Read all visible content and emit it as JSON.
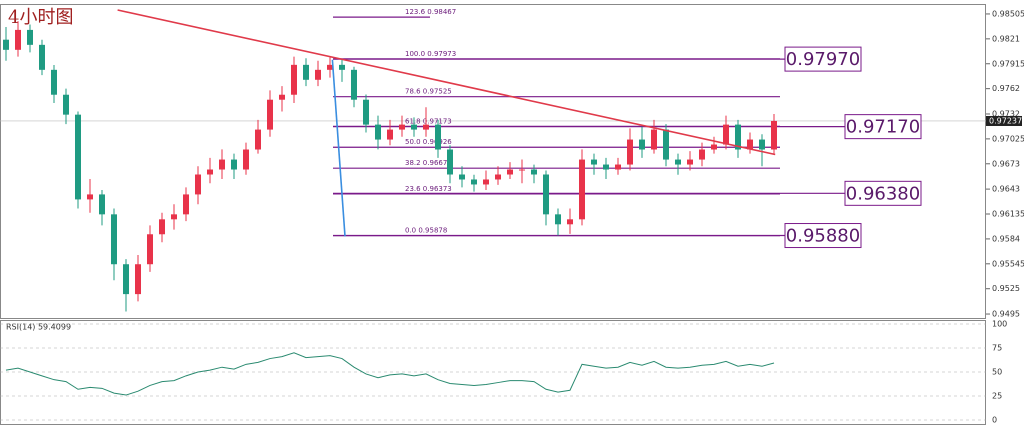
{
  "chart_data": {
    "type": "candlestick",
    "title": "4小时图",
    "up_color": "#e8334a",
    "down_color": "#1f9b82",
    "ylim": [
      0.94903,
      0.98611
    ],
    "yticks": [
      0.98505,
      0.9821,
      0.97915,
      0.9762,
      0.9732,
      0.97025,
      0.9673,
      0.9643,
      0.96135,
      0.9584,
      0.95545,
      0.9525,
      0.9495
    ],
    "ohlc": [
      [
        0.982,
        0.9835,
        0.9795,
        0.9808
      ],
      [
        0.9808,
        0.9842,
        0.98,
        0.98316
      ],
      [
        0.98316,
        0.9838,
        0.9805,
        0.98139
      ],
      [
        0.98139,
        0.982,
        0.9778,
        0.97843
      ],
      [
        0.97843,
        0.979,
        0.9745,
        0.97548
      ],
      [
        0.97548,
        0.9762,
        0.972,
        0.97312
      ],
      [
        0.97312,
        0.9735,
        0.962,
        0.96308
      ],
      [
        0.96308,
        0.9655,
        0.9615,
        0.96367
      ],
      [
        0.96367,
        0.9642,
        0.96,
        0.96131
      ],
      [
        0.96131,
        0.962,
        0.9535,
        0.9554
      ],
      [
        0.9554,
        0.956,
        0.9498,
        0.95186
      ],
      [
        0.95186,
        0.9565,
        0.951,
        0.9554
      ],
      [
        0.9554,
        0.96,
        0.9545,
        0.95895
      ],
      [
        0.95895,
        0.9615,
        0.958,
        0.96072
      ],
      [
        0.96072,
        0.9625,
        0.9595,
        0.96131
      ],
      [
        0.96131,
        0.9645,
        0.9605,
        0.96367
      ],
      [
        0.96367,
        0.967,
        0.9625,
        0.96603
      ],
      [
        0.96603,
        0.968,
        0.965,
        0.96662
      ],
      [
        0.96662,
        0.969,
        0.9655,
        0.9678
      ],
      [
        0.9678,
        0.9685,
        0.9655,
        0.96662
      ],
      [
        0.96662,
        0.9698,
        0.966,
        0.96899
      ],
      [
        0.96899,
        0.9725,
        0.9685,
        0.97135
      ],
      [
        0.97135,
        0.976,
        0.9705,
        0.97489
      ],
      [
        0.97489,
        0.9765,
        0.9735,
        0.97548
      ],
      [
        0.97548,
        0.98,
        0.9745,
        0.97902
      ],
      [
        0.97902,
        0.9798,
        0.9765,
        0.97725
      ],
      [
        0.97725,
        0.9795,
        0.9765,
        0.97843
      ],
      [
        0.97843,
        0.9799,
        0.9775,
        0.97902
      ],
      [
        0.97902,
        0.9796,
        0.977,
        0.97843
      ],
      [
        0.97843,
        0.9788,
        0.974,
        0.97489
      ],
      [
        0.97489,
        0.9755,
        0.971,
        0.97194
      ],
      [
        0.97194,
        0.973,
        0.969,
        0.97017
      ],
      [
        0.97017,
        0.9725,
        0.9695,
        0.97135
      ],
      [
        0.97135,
        0.973,
        0.9705,
        0.97194
      ],
      [
        0.97194,
        0.9728,
        0.9705,
        0.97135
      ],
      [
        0.97135,
        0.974,
        0.9705,
        0.97194
      ],
      [
        0.97194,
        0.9725,
        0.968,
        0.96899
      ],
      [
        0.96899,
        0.9695,
        0.965,
        0.96603
      ],
      [
        0.96603,
        0.967,
        0.9645,
        0.96544
      ],
      [
        0.96544,
        0.966,
        0.964,
        0.96485
      ],
      [
        0.96485,
        0.9665,
        0.9642,
        0.96544
      ],
      [
        0.96544,
        0.967,
        0.9648,
        0.96603
      ],
      [
        0.96603,
        0.9675,
        0.9655,
        0.96662
      ],
      [
        0.96662,
        0.9678,
        0.965,
        0.96662
      ],
      [
        0.96662,
        0.9672,
        0.965,
        0.96603
      ],
      [
        0.96603,
        0.9665,
        0.96,
        0.96131
      ],
      [
        0.96131,
        0.962,
        0.9588,
        0.96013
      ],
      [
        0.96013,
        0.962,
        0.959,
        0.96072
      ],
      [
        0.96072,
        0.969,
        0.96,
        0.9678
      ],
      [
        0.9678,
        0.9685,
        0.966,
        0.96721
      ],
      [
        0.96721,
        0.968,
        0.9655,
        0.96662
      ],
      [
        0.96662,
        0.968,
        0.966,
        0.96721
      ],
      [
        0.96721,
        0.9715,
        0.9665,
        0.97017
      ],
      [
        0.97017,
        0.9717,
        0.968,
        0.96899
      ],
      [
        0.96899,
        0.9725,
        0.9685,
        0.97135
      ],
      [
        0.97135,
        0.972,
        0.967,
        0.9678
      ],
      [
        0.9678,
        0.9685,
        0.966,
        0.96721
      ],
      [
        0.96721,
        0.9688,
        0.9665,
        0.9678
      ],
      [
        0.9678,
        0.9698,
        0.967,
        0.96899
      ],
      [
        0.96899,
        0.9705,
        0.9685,
        0.96958
      ],
      [
        0.96958,
        0.973,
        0.969,
        0.97194
      ],
      [
        0.97194,
        0.9725,
        0.968,
        0.96899
      ],
      [
        0.96899,
        0.971,
        0.9685,
        0.97017
      ],
      [
        0.97017,
        0.9708,
        0.967,
        0.96899
      ],
      [
        0.96899,
        0.9732,
        0.9685,
        0.97237
      ]
    ],
    "last_price": {
      "value": 0.97237,
      "label": "0.97237"
    },
    "trend_lines": [
      {
        "color": "#e03a4a",
        "start": [
          9.3,
          0.98552
        ],
        "end": [
          64.1,
          0.9684
        ]
      },
      {
        "color": "#3a8ee0",
        "start": [
          27.2,
          0.97961
        ],
        "end": [
          28.25,
          0.95871
        ]
      }
    ],
    "fib_levels": [
      {
        "label": "123.6  0.98467",
        "value": 0.98467
      },
      {
        "label": "100.0  0.97973",
        "value": 0.97973
      },
      {
        "label": "78.6  0.97525",
        "value": 0.97525
      },
      {
        "label": "61.8  0.97173",
        "value": 0.97173
      },
      {
        "label": "50.0  0.96926",
        "value": 0.96926
      },
      {
        "label": "38.2  0.96678",
        "value": 0.96678
      },
      {
        "label": "23.6  0.96373",
        "value": 0.96373
      },
      {
        "label": "0.0  0.95878",
        "value": 0.95878
      }
    ],
    "price_boxes": [
      {
        "value": 0.9797,
        "label": "0.97970"
      },
      {
        "value": 0.9717,
        "label": "0.97170"
      },
      {
        "value": 0.9638,
        "label": "0.96380"
      },
      {
        "value": 0.9588,
        "label": "0.95880"
      }
    ],
    "rsi": {
      "title": "RSI(14) 59.4099",
      "color": "#2a8a70",
      "ylim": [
        0,
        100
      ],
      "yticks": [
        0,
        25,
        50,
        75,
        100
      ],
      "values": [
        52,
        54,
        50,
        46,
        42,
        40,
        32,
        34,
        33,
        28,
        26,
        30,
        36,
        40,
        41,
        46,
        50,
        52,
        55,
        53,
        58,
        60,
        64,
        66,
        70,
        65,
        66,
        67,
        64,
        55,
        48,
        44,
        47,
        48,
        46,
        48,
        42,
        38,
        37,
        36,
        37,
        39,
        41,
        41,
        40,
        32,
        29,
        31,
        58,
        56,
        54,
        55,
        60,
        57,
        61,
        55,
        54,
        55,
        57,
        58,
        61,
        56,
        58,
        56,
        59.4099
      ]
    }
  }
}
